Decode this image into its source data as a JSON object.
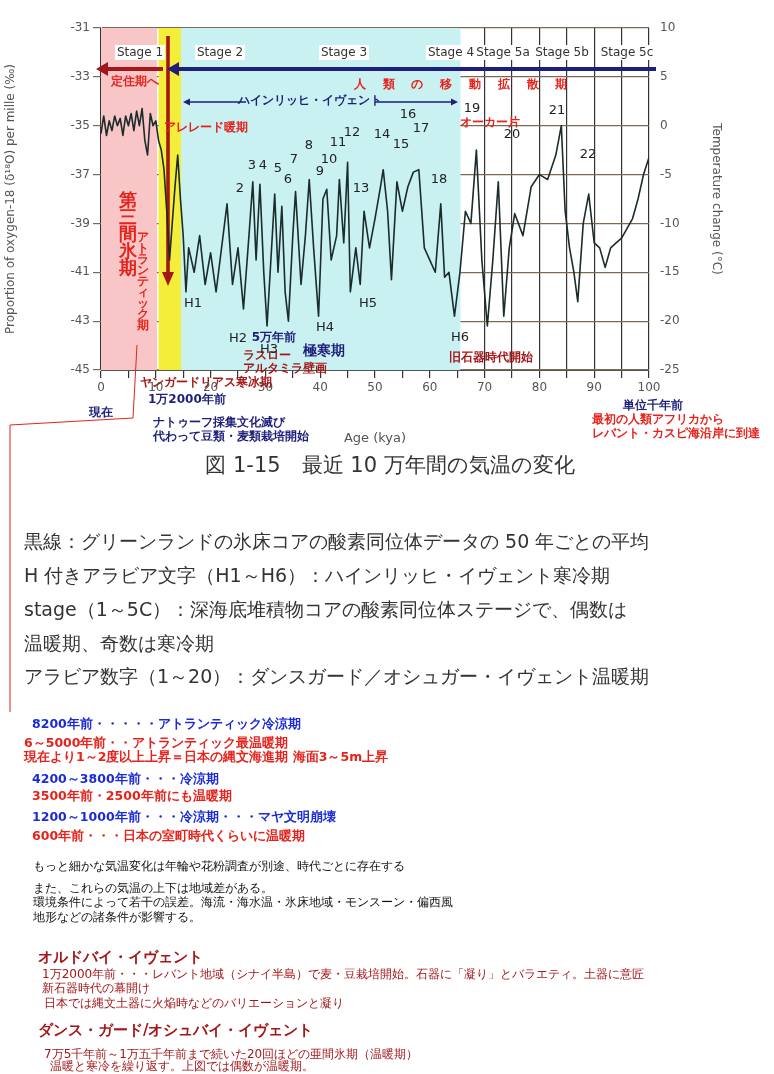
{
  "chart_data": {
    "type": "line",
    "title": "図 1-15　最近 10 万年間の気温の変化",
    "xlabel": "Age (kya)",
    "ylabel": "Proportion of oxygen-18 (δ¹⁸O) per mille (‰)",
    "y2label": "Temperature change (°C)",
    "xlim": [
      0,
      100
    ],
    "xticks": [
      0,
      {
        "value": 5,
        "label": null
      },
      10,
      {
        "value": 15,
        "label": null
      },
      20,
      {
        "value": 25,
        "label": null
      },
      30,
      {
        "value": 35,
        "label": null
      },
      40,
      {
        "value": 45,
        "label": null
      },
      50,
      {
        "value": 55,
        "label": null
      },
      60,
      {
        "value": 65,
        "label": null
      },
      70,
      {
        "value": 75,
        "label": null
      },
      80,
      {
        "value": 85,
        "label": null
      },
      90,
      {
        "value": 95,
        "label": null
      },
      100
    ],
    "ylim": [
      -45,
      -31
    ],
    "yticks": [
      -45,
      -43,
      -41,
      -39,
      -37,
      -35,
      -33,
      -31
    ],
    "y2lim": [
      -25,
      10
    ],
    "y2ticks": [
      -25,
      -20,
      -15,
      -10,
      -5,
      0,
      5,
      10
    ],
    "grid": true,
    "marker": "none",
    "series": [
      {
        "color": "#1c2b2b",
        "x": [
          0,
          0.5,
          1,
          1.5,
          2,
          2.5,
          3,
          3.5,
          4,
          4.5,
          5,
          5.5,
          6,
          6.5,
          7,
          7.5,
          8,
          8.5,
          9,
          9.5,
          10,
          10.5,
          11,
          11.5,
          12,
          12.5,
          13,
          13.5,
          14,
          14.5,
          15,
          15.5,
          16,
          17,
          18,
          19,
          20,
          21,
          22,
          23,
          24,
          25,
          26,
          27,
          27.7,
          28.3,
          29,
          29.7,
          30.3,
          31,
          31.7,
          32.3,
          33,
          33.6,
          34.2,
          35,
          35.5,
          36.5,
          37.3,
          38,
          38.8,
          39.7,
          40.5,
          41.2,
          42,
          43,
          43.5,
          44.3,
          45,
          45.5,
          46.5,
          47.3,
          48,
          49,
          50,
          51,
          51.5,
          52.3,
          53,
          54,
          55,
          56,
          57,
          58,
          59,
          60,
          61,
          62,
          62.7,
          63.5,
          64.5,
          65.5,
          66.5,
          67.5,
          68.5,
          69.5,
          70.5,
          71.5,
          72.5,
          73.5,
          74.5,
          75.5,
          77,
          78.5,
          80,
          81.5,
          83,
          84,
          84.7,
          85.5,
          86.3,
          87,
          88,
          89,
          90,
          91,
          92,
          93,
          94,
          95,
          96,
          97,
          98,
          99,
          100
        ],
        "values": [
          -35.3,
          -34.6,
          -35.4,
          -34.8,
          -35.2,
          -34.6,
          -35.0,
          -34.7,
          -35.4,
          -34.6,
          -35.0,
          -34.5,
          -35.2,
          -34.4,
          -35.0,
          -34.3,
          -35.6,
          -36.2,
          -34.5,
          -35.0,
          -34.8,
          -35.6,
          -36.0,
          -36.8,
          -38.5,
          -40.5,
          -39.0,
          -37.5,
          -36.2,
          -38.0,
          -39.5,
          -41.8,
          -40.0,
          -41.0,
          -39.5,
          -41.5,
          -40.2,
          -41.8,
          -40.0,
          -38.2,
          -41.5,
          -40.0,
          -42.5,
          -39.5,
          -37.3,
          -40.5,
          -37.4,
          -41.0,
          -43.2,
          -40.5,
          -37.8,
          -41.0,
          -38.3,
          -41.8,
          -43.0,
          -39.5,
          -37.7,
          -41.5,
          -39.5,
          -37.2,
          -40.0,
          -42.8,
          -38.0,
          -37.6,
          -40.5,
          -39.5,
          -37.2,
          -39.8,
          -36.5,
          -41.8,
          -40.0,
          -41.5,
          -38.5,
          -40.0,
          -38.8,
          -37.5,
          -36.8,
          -38.5,
          -41.3,
          -37.3,
          -38.5,
          -37.5,
          -36.9,
          -36.8,
          -40.0,
          -40.5,
          -41.0,
          -38.2,
          -41.2,
          -41.0,
          -42.8,
          -41.0,
          -38.5,
          -39.0,
          -36.0,
          -40.5,
          -43.2,
          -40.5,
          -37.3,
          -42.8,
          -40.0,
          -38.6,
          -39.5,
          -37.5,
          -37.0,
          -37.2,
          -36.2,
          -35.0,
          -38.5,
          -40.0,
          -41.0,
          -42.2,
          -39.0,
          -37.8,
          -39.8,
          -40.0,
          -40.8,
          -40.0,
          -39.8,
          -39.6,
          -39.2,
          -38.8,
          -38.0,
          -37.0,
          -36.3
        ]
      }
    ],
    "bands": [
      {
        "axis": "x",
        "from": 0,
        "to": 10.2,
        "color": "#f9c6c8"
      },
      {
        "axis": "x",
        "from": 10.5,
        "to": 14.6,
        "color": "#f4ee3a"
      },
      {
        "axis": "x",
        "from": 14.6,
        "to": 65.6,
        "color": "#c9f1f2"
      }
    ],
    "annotations": [
      "Stage 1",
      "Stage 2",
      "Stage 3",
      "Stage 4",
      "Stage 5a",
      "Stage 5b",
      "Stage 5c",
      "定住期へ",
      "人類の移動拡散期",
      "ハインリッヒ・イヴェント",
      "アレレード暖期",
      "オーカー片",
      "第三間氷期",
      "アトランティック期",
      "5万年前",
      "ラスローアルタミラ壁画",
      "極寒期",
      "旧石器時代開始",
      "2",
      "3",
      "4",
      "5",
      "6",
      "7",
      "8",
      "9",
      "10",
      "11",
      "12",
      "13",
      "14",
      "15",
      "16",
      "17",
      "18",
      "19",
      "20",
      "21",
      "22",
      "H1",
      "H2",
      "H3",
      "H4",
      "H5",
      "H6",
      "現在",
      "ヤンガードリアス寒冰期",
      "1万2000年前",
      "ナトゥーフ採集文化滅び代わって豆類・麦類栽培開始",
      "単位千年前",
      "最初の人類アフリカからレバント・カスピ海沿岸に到達",
      "黒線：グリーンランドの氷床コアの酸素同位体データの 50 年ごとの平均",
      "H 付きアラビア文字（H1～H6）：ハインリッヒ・イヴェント寒冷期",
      "stage（1～5C）：深海底堆積物コアの酸素同位体ステージで、偶数は温暖期、奇数は寒冷期",
      "アラビア数字（1～20）：ダンスガード／オシュガー・イヴェント温暖期",
      "8200年前・・・・・アトランティック冷涼期",
      "6～5000年前・・アトランティック最温暖期",
      "現在より1～2度以上上昇＝日本の縄文海進期 海面3～5m上昇",
      "4200～3800年前・・・冷涼期",
      "3500年前・2500年前にも温暖期",
      "1200～1000年前・・・冷涼期・・・マヤ文明崩壊",
      "600年前・・・日本の室町時代くらいに温暖期",
      "もっと細かな気温変化は年輪や花粉調査が別途、時代ごとに存在する",
      "また、これらの気温の上下は地域差がある。環境条件によって若干の誤差。海流・海水温・氷床地域・モンスーン・偏西風地形などの諸条件が影響する。",
      "オルドバイ・イヴェント",
      "1万2000年前・・・レバント地域（シナイ半島）で麦・豆栽培開始。石器に「凝り」とバラエティ。土器に意匠新石器時代の幕開け",
      "日本では縄文土器に火焔時などのバリエーションと凝り",
      "ダンス・ガード/オシュバイ・イヴェント",
      "7万5千年前～1万五千年前まで続いた20回ほどの亜間氷期（温暖期）",
      "温暖と寒冷を繰り返す。上図では偶数が温暖期。"
    ]
  }
}
